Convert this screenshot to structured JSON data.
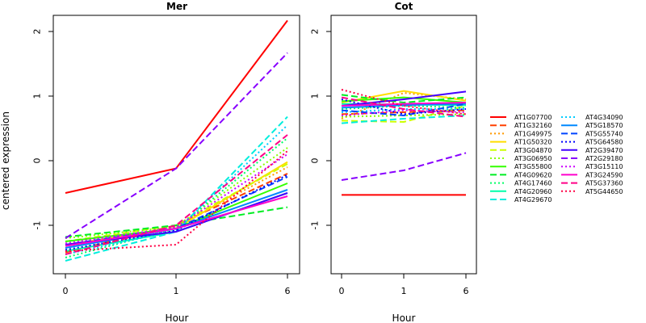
{
  "chart_data": [
    {
      "type": "line",
      "title": "Mer",
      "xlabel": "Hour",
      "ylabel": "centered expression",
      "categories": [
        "0",
        "1",
        "6"
      ],
      "yticks": [
        "-1",
        "0",
        "1",
        "2"
      ],
      "ylim": [
        -1.75,
        2.25
      ],
      "series": [
        {
          "name": "AT1G07700",
          "values": [
            -0.5,
            -0.12,
            2.17
          ]
        },
        {
          "name": "AT1G32160",
          "values": [
            -1.42,
            -1.0,
            -0.2
          ]
        },
        {
          "name": "AT1G49975",
          "values": [
            -1.35,
            -1.02,
            -0.1
          ]
        },
        {
          "name": "AT1G50320",
          "values": [
            -1.3,
            -1.05,
            -0.02
          ]
        },
        {
          "name": "AT3G04870",
          "values": [
            -1.25,
            -1.0,
            -0.05
          ]
        },
        {
          "name": "AT3G06950",
          "values": [
            -1.2,
            -1.02,
            0.2
          ]
        },
        {
          "name": "AT3G55800",
          "values": [
            -1.25,
            -1.05,
            -0.35
          ]
        },
        {
          "name": "AT4G09620",
          "values": [
            -1.18,
            -1.0,
            -0.72
          ]
        },
        {
          "name": "AT4G17460",
          "values": [
            -1.5,
            -1.05,
            0.35
          ]
        },
        {
          "name": "AT4G20960",
          "values": [
            -1.4,
            -1.1,
            -0.5
          ]
        },
        {
          "name": "AT4G29670",
          "values": [
            -1.55,
            -1.1,
            0.68
          ]
        },
        {
          "name": "AT4G34090",
          "values": [
            -1.45,
            -1.08,
            0.55
          ]
        },
        {
          "name": "AT5G18570",
          "values": [
            -1.35,
            -1.05,
            -0.45
          ]
        },
        {
          "name": "AT5G55740",
          "values": [
            -1.3,
            -1.05,
            -0.25
          ]
        },
        {
          "name": "AT5G64580",
          "values": [
            -1.38,
            -1.08,
            -0.22
          ]
        },
        {
          "name": "AT2G39470",
          "values": [
            -1.3,
            -1.1,
            -0.5
          ]
        },
        {
          "name": "AT2G29180",
          "values": [
            -1.2,
            -0.12,
            1.67
          ]
        },
        {
          "name": "AT3G15110",
          "values": [
            -1.28,
            -1.03,
            0.1
          ]
        },
        {
          "name": "AT3G24590",
          "values": [
            -1.32,
            -1.05,
            -0.55
          ]
        },
        {
          "name": "AT5G37360",
          "values": [
            -1.45,
            -1.0,
            0.4
          ]
        },
        {
          "name": "AT5G44650",
          "values": [
            -1.4,
            -1.3,
            0.15
          ]
        }
      ]
    },
    {
      "type": "line",
      "title": "Cot",
      "xlabel": "Hour",
      "ylabel": "",
      "categories": [
        "0",
        "1",
        "6"
      ],
      "yticks": [
        "-1",
        "0",
        "1",
        "2"
      ],
      "ylim": [
        -1.75,
        2.25
      ],
      "series": [
        {
          "name": "AT1G07700",
          "values": [
            -0.53,
            -0.53,
            -0.53
          ]
        },
        {
          "name": "AT1G32160",
          "values": [
            0.72,
            0.75,
            0.78
          ]
        },
        {
          "name": "AT1G49975",
          "values": [
            0.65,
            1.05,
            0.95
          ]
        },
        {
          "name": "AT1G50320",
          "values": [
            0.9,
            1.08,
            0.93
          ]
        },
        {
          "name": "AT3G04870",
          "values": [
            0.62,
            0.6,
            0.85
          ]
        },
        {
          "name": "AT3G06950",
          "values": [
            0.68,
            0.7,
            0.72
          ]
        },
        {
          "name": "AT3G55800",
          "values": [
            0.92,
            0.98,
            0.9
          ]
        },
        {
          "name": "AT4G09620",
          "values": [
            1.02,
            0.9,
            0.98
          ]
        },
        {
          "name": "AT4G17460",
          "values": [
            0.8,
            0.85,
            0.82
          ]
        },
        {
          "name": "AT4G20960",
          "values": [
            0.88,
            0.87,
            0.86
          ]
        },
        {
          "name": "AT4G29670",
          "values": [
            0.58,
            0.65,
            0.7
          ]
        },
        {
          "name": "AT4G34090",
          "values": [
            0.75,
            0.8,
            0.8
          ]
        },
        {
          "name": "AT5G18570",
          "values": [
            0.82,
            0.86,
            0.88
          ]
        },
        {
          "name": "AT5G55740",
          "values": [
            0.78,
            0.7,
            0.88
          ]
        },
        {
          "name": "AT5G64580",
          "values": [
            0.95,
            0.72,
            0.8
          ]
        },
        {
          "name": "AT2G39470",
          "values": [
            0.85,
            0.95,
            1.07
          ]
        },
        {
          "name": "AT2G29180",
          "values": [
            -0.3,
            -0.15,
            0.12
          ]
        },
        {
          "name": "AT3G15110",
          "values": [
            0.7,
            0.78,
            0.75
          ]
        },
        {
          "name": "AT3G24590",
          "values": [
            0.85,
            0.88,
            0.9
          ]
        },
        {
          "name": "AT5G37360",
          "values": [
            0.98,
            0.8,
            0.68
          ]
        },
        {
          "name": "AT5G44650",
          "values": [
            1.1,
            0.85,
            0.72
          ]
        }
      ]
    }
  ],
  "legend": [
    {
      "name": "AT1G07700",
      "color": "#ff0000",
      "dash": "solid"
    },
    {
      "name": "AT1G32160",
      "color": "#ff4000",
      "dash": "dashed"
    },
    {
      "name": "AT1G49975",
      "color": "#ff9900",
      "dash": "dotted"
    },
    {
      "name": "AT1G50320",
      "color": "#ffdd00",
      "dash": "solid"
    },
    {
      "name": "AT3G04870",
      "color": "#ccff00",
      "dash": "dashed"
    },
    {
      "name": "AT3G06950",
      "color": "#88ff00",
      "dash": "dotted"
    },
    {
      "name": "AT3G55800",
      "color": "#33ff00",
      "dash": "solid"
    },
    {
      "name": "AT4G09620",
      "color": "#00ee22",
      "dash": "dashed"
    },
    {
      "name": "AT4G17460",
      "color": "#00ff66",
      "dash": "dotted"
    },
    {
      "name": "AT4G20960",
      "color": "#00ffaa",
      "dash": "solid"
    },
    {
      "name": "AT4G29670",
      "color": "#00eedd",
      "dash": "dashed"
    },
    {
      "name": "AT4G34090",
      "color": "#00ccff",
      "dash": "dotted"
    },
    {
      "name": "AT5G18570",
      "color": "#0088ff",
      "dash": "solid"
    },
    {
      "name": "AT5G55740",
      "color": "#0044ff",
      "dash": "dashed"
    },
    {
      "name": "AT5G64580",
      "color": "#0000ff",
      "dash": "dotted"
    },
    {
      "name": "AT2G39470",
      "color": "#4400ff",
      "dash": "solid"
    },
    {
      "name": "AT2G29180",
      "color": "#8800ff",
      "dash": "dashed"
    },
    {
      "name": "AT3G15110",
      "color": "#cc00ff",
      "dash": "dotted"
    },
    {
      "name": "AT3G24590",
      "color": "#ff00cc",
      "dash": "solid"
    },
    {
      "name": "AT5G37360",
      "color": "#ff0088",
      "dash": "dashed"
    },
    {
      "name": "AT5G44650",
      "color": "#ff0044",
      "dash": "dotted"
    }
  ]
}
